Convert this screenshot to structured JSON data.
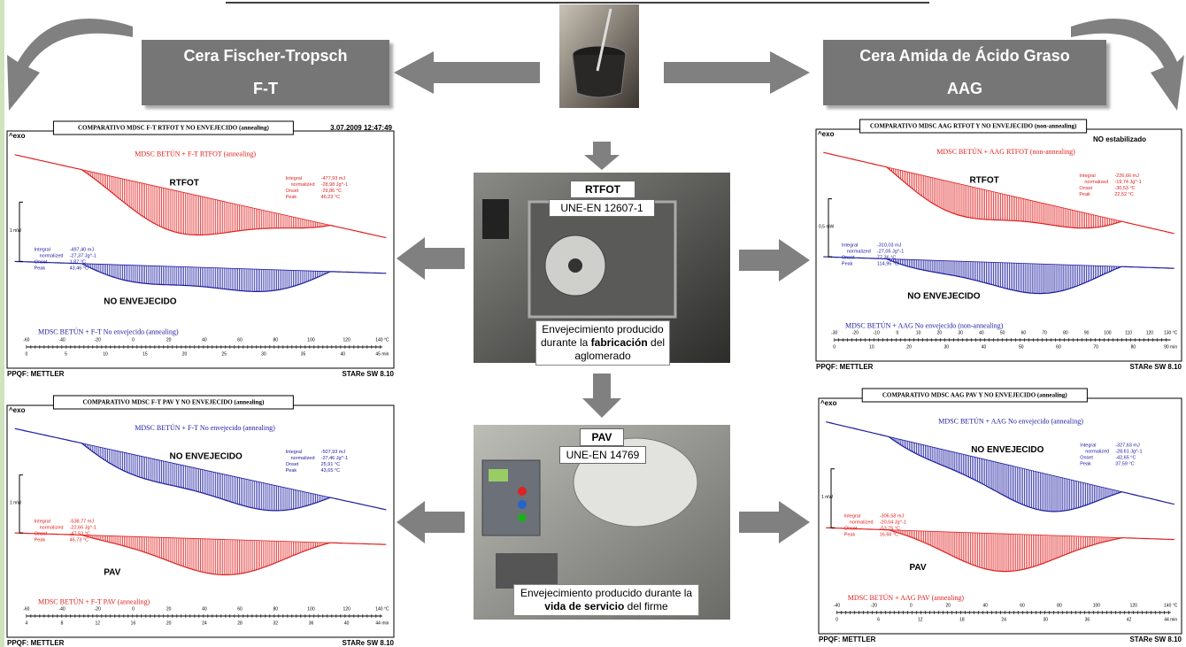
{
  "header": {
    "left": {
      "title": "Cera Fischer-Tropsch",
      "abbr": "F-T"
    },
    "right": {
      "title": "Cera Amida de Ácido Graso",
      "abbr": "AAG"
    }
  },
  "center": {
    "rtfot": {
      "label": "RTFOT",
      "standard": "UNE-EN 12607-1",
      "caption": [
        "Envejecimiento producido durante la ",
        "fabricación",
        " del aglomerado"
      ]
    },
    "pav": {
      "label": "PAV",
      "standard": "UNE-EN 14769",
      "caption": [
        "Envejecimiento producido durante la ",
        "vida de servicio",
        " del firme"
      ]
    }
  },
  "stat_labels": [
    "Integral",
    "normalized",
    "Onset",
    "Peak"
  ],
  "panels": [
    {
      "title": "COMPARATIVO MDSC F-T RTFOT Y NO ENVEJECIDO  (annealing)",
      "date": "3.07.2009 12:47:49",
      "exo": "^exo",
      "scale": "1 mW",
      "top": {
        "color": "#e02020",
        "name": "MDSC BETÚN + F-T RTFOT (annealing)",
        "label": "RTFOT",
        "stats": [
          "-477,93 mJ",
          "-28,98 Jg^-1",
          "-29,86 °C",
          "46,23 °C"
        ]
      },
      "bottom": {
        "color": "#1a1aa0",
        "name": "MDSC BETÚN + F-T No envejecido (annealing)",
        "label": "NO ENVEJECIDO",
        "stats": [
          "-497,40 mJ",
          "-27,37 Jg^-1",
          "1,87 °C",
          "43,46 °C"
        ]
      },
      "x_labels": [
        "-60",
        "-40",
        "-20",
        "0",
        "20",
        "40",
        "60",
        "80",
        "100",
        "120",
        "140 °C"
      ],
      "t_labels": [
        "0",
        "5",
        "10",
        "15",
        "20",
        "25",
        "30",
        "35",
        "40",
        "45 min"
      ],
      "footer_left": "PPQF: METTLER",
      "footer_right": "STARe SW 8.10"
    },
    {
      "title": "COMPARATIVO MDSC AAG RTFOT Y NO ENVEJECIDO  (non-annealing)",
      "note": "NO estabilizado",
      "exo": "^exo",
      "scale": "0,5 mW",
      "top": {
        "color": "#e02020",
        "name": "MDSC BETÚN + AAG RTFOT (non-annealing)",
        "label": "RTFOT",
        "stats": [
          "-226,66 mJ",
          "-19,74 Jg^-1",
          "-30,53 °C",
          "22,52 °C"
        ]
      },
      "bottom": {
        "color": "#1a1aa0",
        "name": "MDSC BETÚN + AAG No envejecido (non-annealing)",
        "label": "NO ENVEJECIDO",
        "stats": [
          "-310,03 mJ",
          "-27,05 Jg^-1",
          "77,36 °C",
          "114,95 °C"
        ]
      },
      "x_labels": [
        "-30",
        "-20",
        "-10",
        "0",
        "10",
        "20",
        "30",
        "40",
        "50",
        "60",
        "70",
        "80",
        "90",
        "100",
        "110",
        "120",
        "130 °C"
      ],
      "t_labels": [
        "0",
        "10",
        "20",
        "30",
        "40",
        "50",
        "60",
        "70",
        "80",
        "90 min"
      ],
      "footer_left": "PPQF: METTLER",
      "footer_right": "STARe SW 8.10"
    },
    {
      "title": "COMPARATIVO MDSC F-T PAV Y NO ENVEJECIDO  (annealing)",
      "exo": "^exo",
      "scale": "1 mW",
      "top": {
        "color": "#1a1aa0",
        "name": "MDSC BETÚN + F-T No envejecido (annealing)",
        "label": "NO ENVEJECIDO",
        "stats": [
          "-507,93 mJ",
          "-27,46 Jg^-1",
          "25,91 °C",
          "43,65 °C"
        ]
      },
      "bottom": {
        "color": "#e02020",
        "name": "MDSC BETÚN + F-T PAV (annealing)",
        "label": "PAV",
        "stats": [
          "-538,77 mJ",
          "-22,66 Jg^-1",
          "-47,53 °C",
          "46,73 °C"
        ]
      },
      "x_labels": [
        "-60",
        "-40",
        "-20",
        "0",
        "20",
        "40",
        "60",
        "80",
        "100",
        "120",
        "140 °C"
      ],
      "t_labels": [
        "4",
        "8",
        "12",
        "16",
        "20",
        "24",
        "28",
        "32",
        "36",
        "40",
        "44 min"
      ],
      "footer_left": "PPQF: METTLER",
      "footer_right": "STARe SW 8.10"
    },
    {
      "title": "COMPARATIVO MDSC AAG PAV Y NO ENVEJECIDO  (annealing)",
      "exo": "^exo",
      "scale": "1 mW",
      "top": {
        "color": "#1a1aa0",
        "name": "MDSC BETÚN + AAG No envejecido (annealing)",
        "label": "NO ENVEJECIDO",
        "stats": [
          "-327,63 mJ",
          "-28,61 Jg^-1",
          "-42,65 °C",
          "37,59 °C"
        ]
      },
      "bottom": {
        "color": "#e02020",
        "name": "MDSC BETÚN + AAG PAV (annealing)",
        "label": "PAV",
        "stats": [
          "-306,58 mJ",
          "-20,04 Jg^-1",
          "-53,75 °C",
          "16,66 °C"
        ]
      },
      "x_labels": [
        "-40",
        "-20",
        "0",
        "20",
        "40",
        "60",
        "80",
        "100",
        "120",
        "140 °C"
      ],
      "t_labels": [
        "0",
        "6",
        "12",
        "18",
        "24",
        "30",
        "36",
        "42",
        "44 min"
      ],
      "footer_left": "PPQF: METTLER",
      "footer_right": "STARe SW 8.10"
    }
  ]
}
